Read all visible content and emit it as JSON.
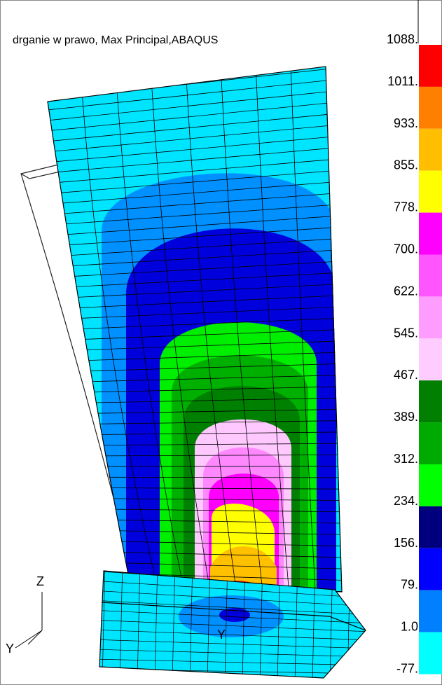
{
  "header": {
    "title": "drganie w prawo, Max Principal,ABAQUS"
  },
  "legend": {
    "labels": [
      "1088.",
      "1011.",
      "933.",
      "855.",
      "778.",
      "700.",
      "622.",
      "545.",
      "467.",
      "389.",
      "312.",
      "234.",
      "156.",
      "79.",
      "1.0",
      "-77."
    ],
    "colors": [
      "#ff0000",
      "#ff7f00",
      "#ffbf00",
      "#ffff00",
      "#ff00ff",
      "#ff55ff",
      "#ff9cff",
      "#ffccff",
      "#007f00",
      "#00aa00",
      "#00ff00",
      "#00007f",
      "#0000ff",
      "#0080ff",
      "#00ffff"
    ]
  },
  "triad": {
    "vertical": "Z",
    "horizontal": "Y"
  },
  "view_label": "Y"
}
